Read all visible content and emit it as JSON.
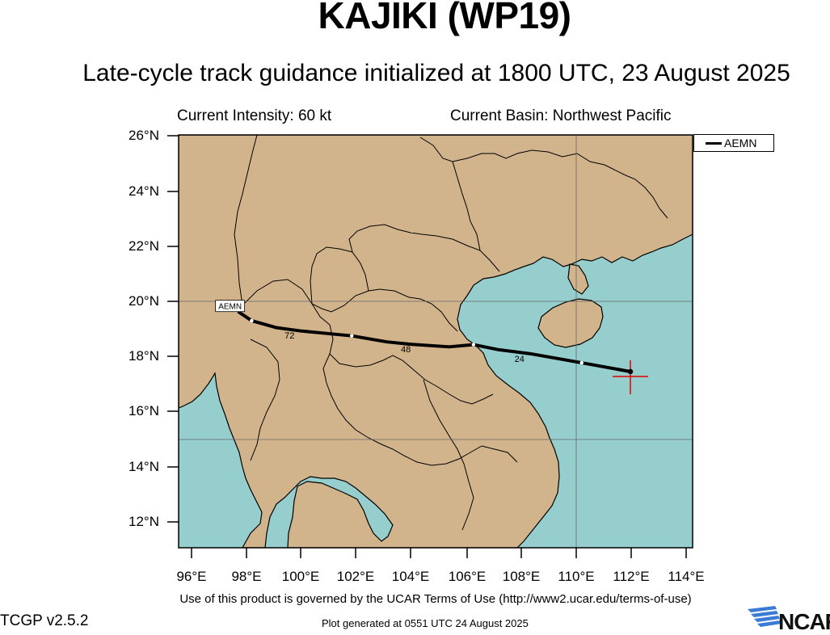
{
  "header": {
    "storm_title": "KAJIKI (WP19)",
    "subtitle": "Late-cycle track guidance initialized at 1800 UTC, 23 August 2025",
    "intensity": "Current Intensity: 60 kt",
    "basin": "Current Basin: Northwest Pacific"
  },
  "map": {
    "lon_range": [
      95.5,
      114.5
    ],
    "lat_range": [
      11,
      26
    ],
    "y_ticks": [
      "26°N",
      "24°N",
      "22°N",
      "20°N",
      "18°N",
      "16°N",
      "14°N",
      "12°N"
    ],
    "x_ticks": [
      "96°E",
      "98°E",
      "100°E",
      "102°E",
      "104°E",
      "106°E",
      "108°E",
      "110°E",
      "112°E",
      "114°E"
    ],
    "land_color": "#d2b48c",
    "ocean_color": "#96cdcd",
    "current_position": {
      "lon": 112.2,
      "lat": 17.4
    }
  },
  "legend": {
    "items": [
      {
        "name": "AEMN",
        "color": "#000000"
      }
    ]
  },
  "tracks": [
    {
      "name": "AEMN",
      "end_label": "AEMN",
      "points": [
        {
          "lon": 112.2,
          "lat": 17.4
        },
        {
          "lon": 110.4,
          "lat": 17.72
        },
        {
          "lon": 108.5,
          "lat": 18.05
        },
        {
          "lon": 107.3,
          "lat": 18.2
        },
        {
          "lon": 106.4,
          "lat": 18.38
        },
        {
          "lon": 105.5,
          "lat": 18.3
        },
        {
          "lon": 104.0,
          "lat": 18.4
        },
        {
          "lon": 103.2,
          "lat": 18.48
        },
        {
          "lon": 101.9,
          "lat": 18.7
        },
        {
          "lon": 100.0,
          "lat": 18.88
        },
        {
          "lon": 99.1,
          "lat": 19.0
        },
        {
          "lon": 98.2,
          "lat": 19.25
        },
        {
          "lon": 97.7,
          "lat": 19.58
        }
      ],
      "hour_labels": [
        {
          "text": "24",
          "lon": 108.1,
          "lat": 17.9
        },
        {
          "text": "48",
          "lon": 103.9,
          "lat": 18.25
        },
        {
          "text": "72",
          "lon": 99.6,
          "lat": 18.75
        }
      ]
    }
  ],
  "footer": {
    "terms": "Use of this product is governed by the UCAR Terms of Use (http://www2.ucar.edu/terms-of-use)",
    "version": "TCGP v2.5.2",
    "generated": "Plot generated at 0551 UTC   24 August 2025",
    "logo_text": "NCAR"
  }
}
